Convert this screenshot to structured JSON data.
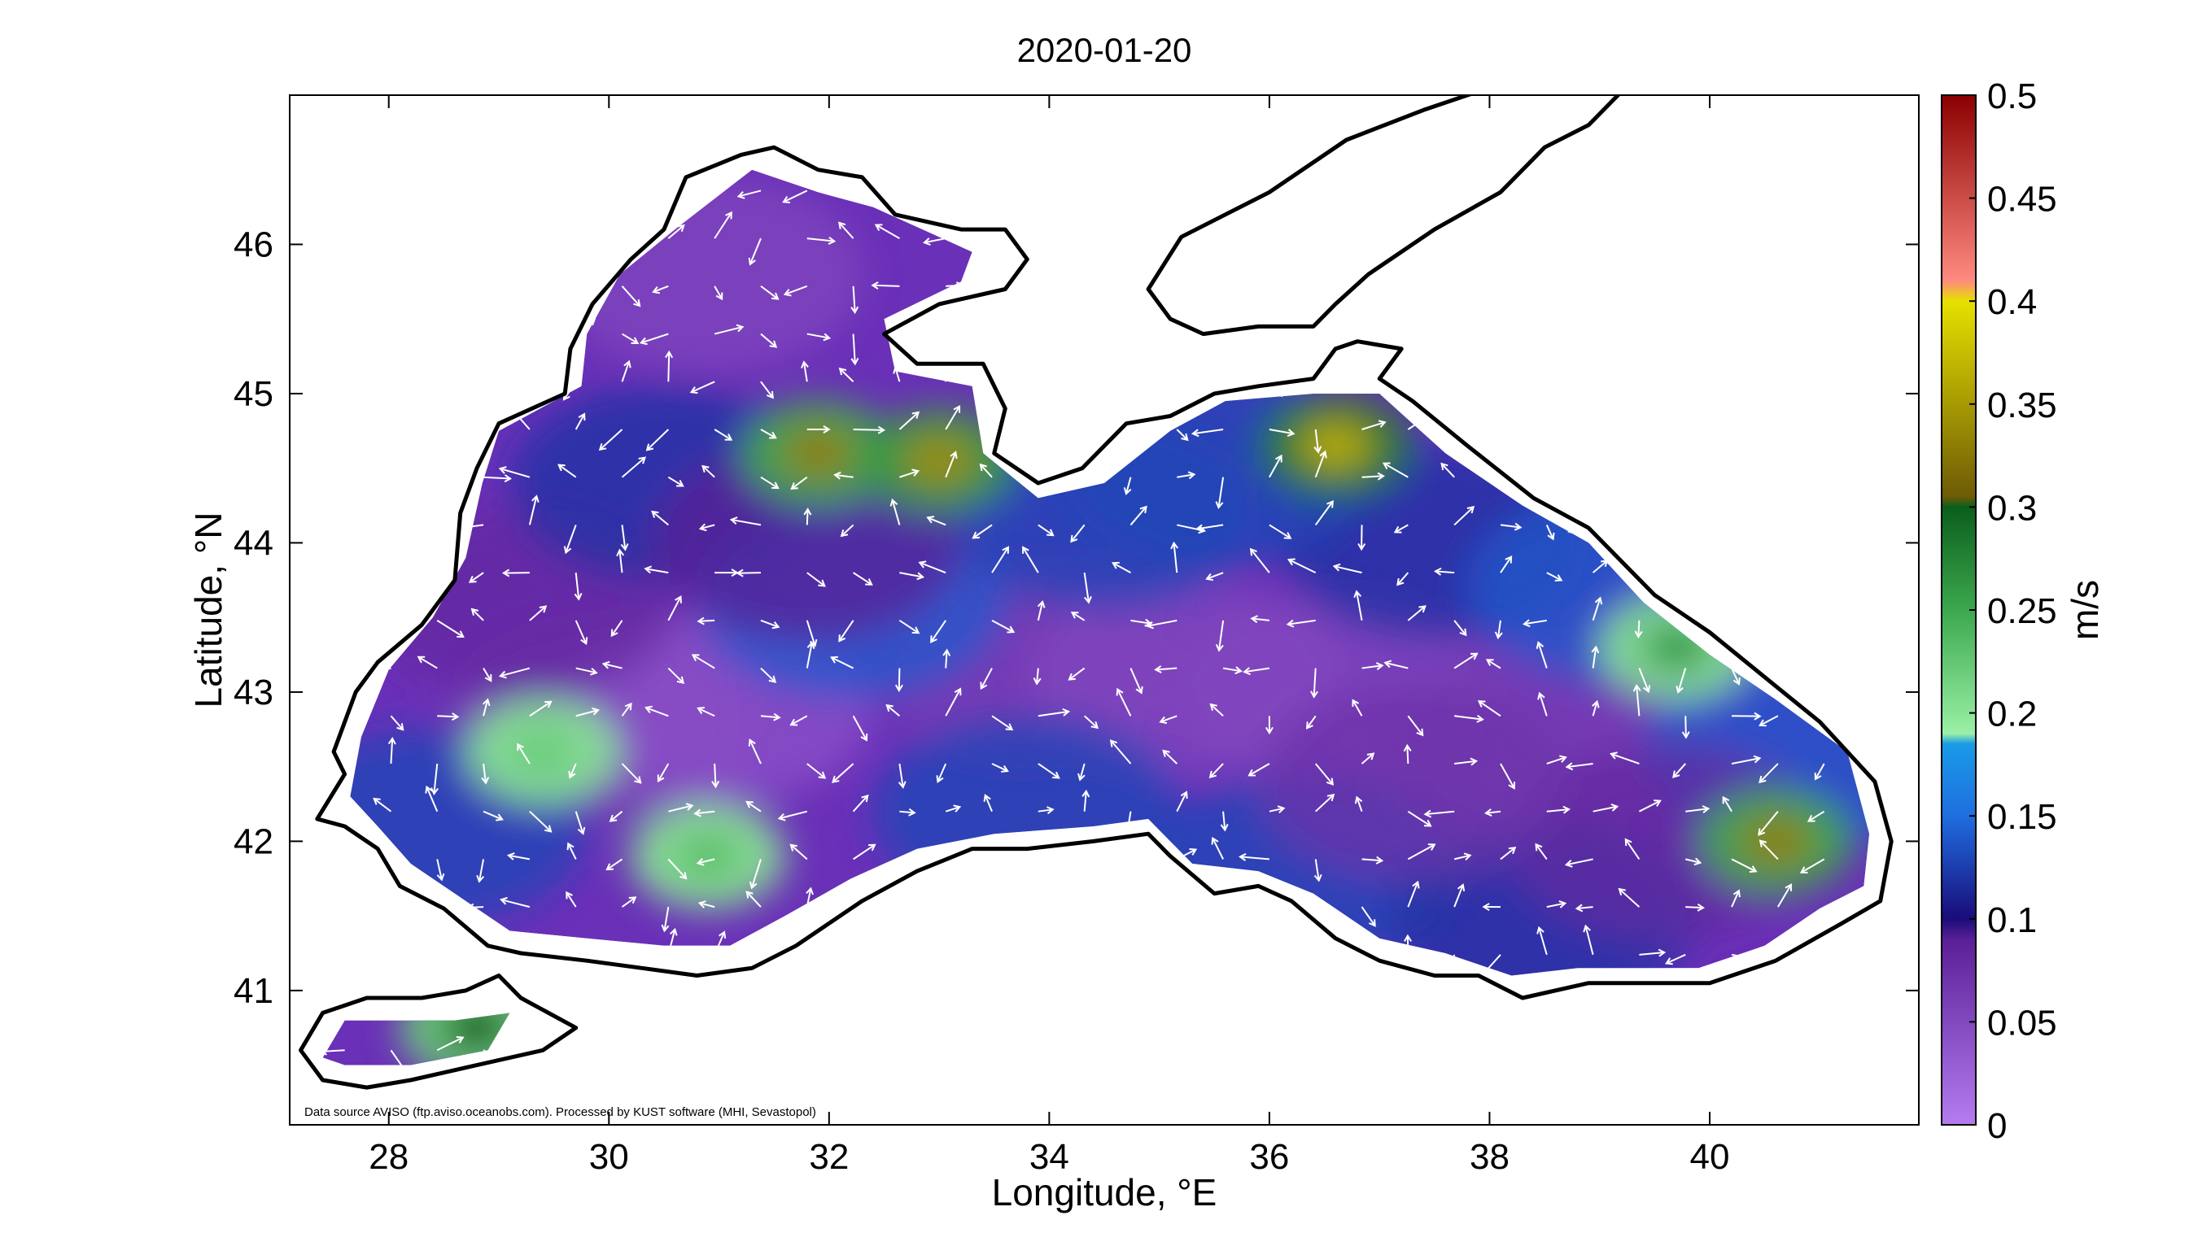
{
  "chart_data": {
    "type": "heatmap",
    "title": "2020-01-20",
    "xlabel": "Longitude, °E",
    "ylabel": "Latitude, °N",
    "xlim": [
      27.1,
      41.9
    ],
    "ylim": [
      40.1,
      47.0
    ],
    "x_ticks": [
      28,
      30,
      32,
      34,
      36,
      38,
      40
    ],
    "x_tick_labels": [
      "28",
      "30",
      "32",
      "34",
      "36",
      "38",
      "40"
    ],
    "y_ticks": [
      41,
      42,
      43,
      44,
      45,
      46
    ],
    "y_tick_labels": [
      "41",
      "42",
      "43",
      "44",
      "45",
      "46"
    ],
    "grid": false,
    "colorbar": {
      "label": "m/s",
      "range": [
        0,
        0.5
      ],
      "ticks": [
        0,
        0.05,
        0.1,
        0.15,
        0.2,
        0.25,
        0.3,
        0.35,
        0.4,
        0.45,
        0.5
      ],
      "tick_labels": [
        "0",
        "0.05",
        "0.1",
        "0.15",
        "0.2",
        "0.25",
        "0.3",
        "0.35",
        "0.4",
        "0.45",
        "0.5"
      ],
      "stops": [
        {
          "value": 0.0,
          "color": "#b57cf0"
        },
        {
          "value": 0.09,
          "color": "#5a1f96"
        },
        {
          "value": 0.1,
          "color": "#1a0c7a"
        },
        {
          "value": 0.15,
          "color": "#1f6ee0"
        },
        {
          "value": 0.185,
          "color": "#1a9be6"
        },
        {
          "value": 0.19,
          "color": "#9af0a6"
        },
        {
          "value": 0.25,
          "color": "#3ca84e"
        },
        {
          "value": 0.3,
          "color": "#0b5e1c"
        },
        {
          "value": 0.305,
          "color": "#6e5b06"
        },
        {
          "value": 0.4,
          "color": "#e6e000"
        },
        {
          "value": 0.41,
          "color": "#ff8a80"
        },
        {
          "value": 0.5,
          "color": "#8a0000"
        }
      ]
    },
    "field_hotspots": [
      {
        "lon": 31.9,
        "lat": 44.6,
        "speed": 0.33
      },
      {
        "lon": 33.0,
        "lat": 44.55,
        "speed": 0.34
      },
      {
        "lon": 36.6,
        "lat": 44.65,
        "speed": 0.36
      },
      {
        "lon": 40.6,
        "lat": 42.0,
        "speed": 0.33
      },
      {
        "lon": 39.7,
        "lat": 43.3,
        "speed": 0.26
      },
      {
        "lon": 29.4,
        "lat": 42.6,
        "speed": 0.22
      },
      {
        "lon": 30.9,
        "lat": 41.9,
        "speed": 0.23
      },
      {
        "lon": 28.8,
        "lat": 40.75,
        "speed": 0.3
      }
    ],
    "annotation": "Data source AVISO (ftp.aviso.oceanobs.com). Processed by KUST software (MHI, Sevastopol)"
  }
}
